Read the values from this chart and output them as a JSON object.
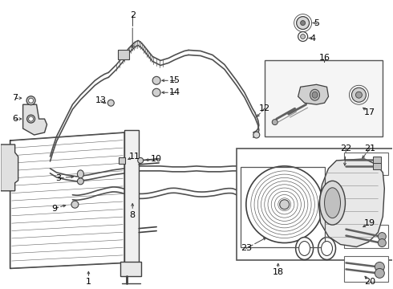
{
  "background_color": "#ffffff",
  "line_color": "#404040",
  "label_color": "#000000",
  "fig_width": 4.9,
  "fig_height": 3.6,
  "dpi": 100
}
